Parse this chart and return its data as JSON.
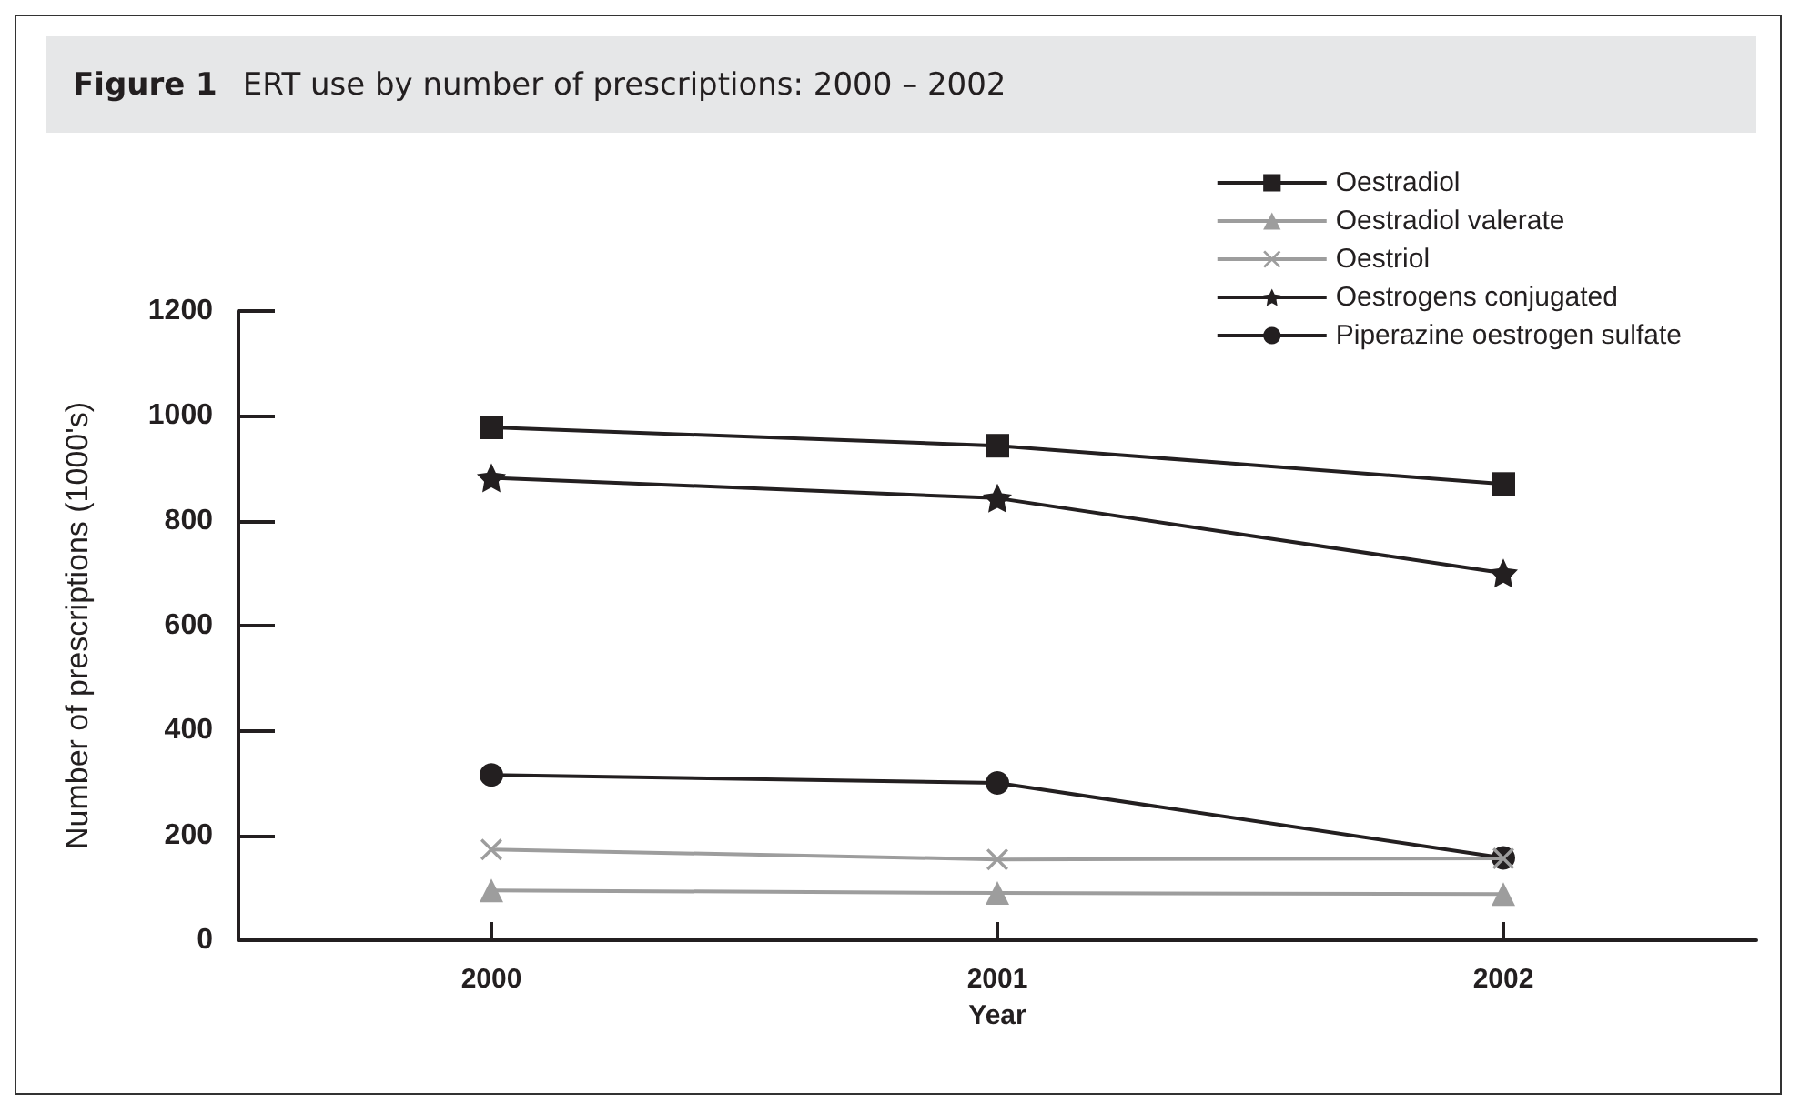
{
  "chart_data": {
    "type": "line",
    "title": "Figure 1",
    "subtitle": "ERT use by number of prescriptions: 2000 – 2002",
    "xlabel": "Year",
    "ylabel": "Number of prescriptions (1000's)",
    "categories": [
      "2000",
      "2001",
      "2002"
    ],
    "series": [
      {
        "name": "Oestradiol",
        "color": "#231f20",
        "marker": "square",
        "values": [
          978,
          943,
          870
        ]
      },
      {
        "name": "Oestradiol valerate",
        "color": "#9d9d9d",
        "marker": "triangle",
        "values": [
          95,
          90,
          88
        ]
      },
      {
        "name": "Oestriol",
        "color": "#9d9d9d",
        "marker": "cross",
        "values": [
          173,
          154,
          156
        ]
      },
      {
        "name": "Oestrogens conjugated",
        "color": "#231f20",
        "marker": "star",
        "values": [
          882,
          843,
          700
        ]
      },
      {
        "name": "Piperazine oestrogen sulfate",
        "color": "#231f20",
        "marker": "circle",
        "values": [
          315,
          300,
          157
        ]
      }
    ],
    "ylim": [
      0,
      1200
    ],
    "yticks": [
      0,
      200,
      400,
      600,
      800,
      1000,
      1200
    ],
    "grid": false,
    "legend": "top right",
    "line_style": "solid"
  }
}
